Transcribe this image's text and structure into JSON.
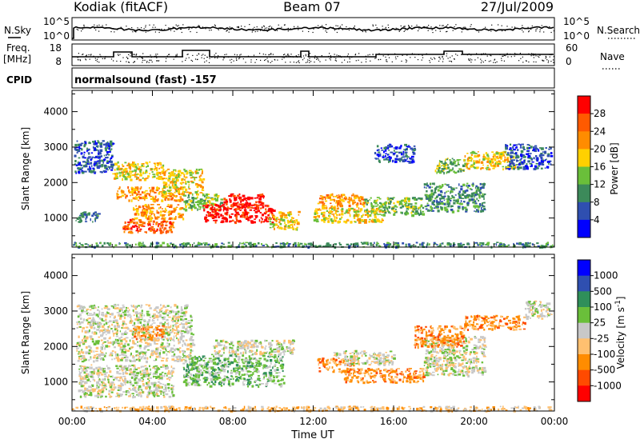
{
  "header": {
    "station": "Kodiak (fitACF)",
    "beam": "Beam 07",
    "date": "27/Jul/2009"
  },
  "strip_labels": {
    "nsky": "N.Sky",
    "nsearch": "N.Search",
    "freq": "Freq.",
    "freq_unit": "[MHz]",
    "nave": "Nave",
    "cpid": "CPID",
    "cpid_text": "normalsound (fast) -157"
  },
  "noise_strip": {
    "left_ticks": [
      "10^5",
      "10^0"
    ],
    "right_ticks": [
      "10^5",
      "10^0"
    ]
  },
  "freq_strip": {
    "left_ticks": [
      "18",
      "8"
    ],
    "right_ticks": [
      "60",
      "0"
    ]
  },
  "x_axis": {
    "label": "Time UT",
    "ticks": [
      "00:00",
      "04:00",
      "08:00",
      "12:00",
      "16:00",
      "20:00",
      "00:00"
    ]
  },
  "colors": {
    "power": [
      "#0000ff",
      "#2f4fb0",
      "#3c8a5a",
      "#6abf3a",
      "#ffd000",
      "#ff8c00",
      "#ff5a00",
      "#ff0000"
    ],
    "velocity": [
      "#ff0000",
      "#ff4a00",
      "#ff8c00",
      "#ffc070",
      "#c8c8c8",
      "#6abf3a",
      "#2f8f5a",
      "#2f4fb0",
      "#0000ff"
    ]
  },
  "chart_data": [
    {
      "type": "heatmap",
      "title": "",
      "xlabel": "",
      "ylabel": "Slant Range [km]",
      "xlim": [
        0,
        24
      ],
      "ylim": [
        180,
        4600
      ],
      "yticks": [
        1000,
        2000,
        3000,
        4000
      ],
      "colorbar_label": "Power [dB]",
      "colorbar_ticks": [
        "4",
        "8",
        "12",
        "16",
        "20",
        "24",
        "28"
      ],
      "blobs": [
        {
          "t0": 0.0,
          "t1": 24.0,
          "r0": 200,
          "r1": 330,
          "level": 2
        },
        {
          "t0": 0.1,
          "t1": 2.0,
          "r0": 2300,
          "r1": 3200,
          "level": 1
        },
        {
          "t0": 0.1,
          "t1": 1.3,
          "r0": 900,
          "r1": 1200,
          "level": 2
        },
        {
          "t0": 2.0,
          "t1": 4.5,
          "r0": 2100,
          "r1": 2600,
          "level": 4
        },
        {
          "t0": 2.2,
          "t1": 5.5,
          "r0": 1500,
          "r1": 1900,
          "level": 5
        },
        {
          "t0": 2.5,
          "t1": 5.0,
          "r0": 600,
          "r1": 1000,
          "level": 6
        },
        {
          "t0": 3.0,
          "t1": 5.5,
          "r0": 1000,
          "r1": 1400,
          "level": 5
        },
        {
          "t0": 4.5,
          "t1": 6.5,
          "r0": 1700,
          "r1": 2400,
          "level": 4
        },
        {
          "t0": 5.5,
          "t1": 7.5,
          "r0": 1250,
          "r1": 1700,
          "level": 3
        },
        {
          "t0": 6.5,
          "t1": 10.0,
          "r0": 900,
          "r1": 1400,
          "level": 7
        },
        {
          "t0": 7.5,
          "t1": 9.5,
          "r0": 1300,
          "r1": 1700,
          "level": 7
        },
        {
          "t0": 9.8,
          "t1": 11.3,
          "r0": 700,
          "r1": 1200,
          "level": 4
        },
        {
          "t0": 12.2,
          "t1": 14.5,
          "r0": 1300,
          "r1": 1700,
          "level": 5
        },
        {
          "t0": 12.0,
          "t1": 15.5,
          "r0": 900,
          "r1": 1300,
          "level": 4
        },
        {
          "t0": 14.5,
          "t1": 17.5,
          "r0": 1100,
          "r1": 1600,
          "level": 3
        },
        {
          "t0": 17.5,
          "t1": 20.5,
          "r0": 1200,
          "r1": 2000,
          "level": 2
        },
        {
          "t0": 15.0,
          "t1": 17.0,
          "r0": 2600,
          "r1": 3100,
          "level": 1
        },
        {
          "t0": 18.0,
          "t1": 19.5,
          "r0": 2300,
          "r1": 2700,
          "level": 3
        },
        {
          "t0": 19.5,
          "t1": 22.0,
          "r0": 2400,
          "r1": 2900,
          "level": 4
        },
        {
          "t0": 21.5,
          "t1": 23.8,
          "r0": 2400,
          "r1": 3100,
          "level": 1
        }
      ]
    },
    {
      "type": "heatmap",
      "title": "",
      "xlabel": "Time UT",
      "ylabel": "Slant Range [km]",
      "xlim": [
        0,
        24
      ],
      "ylim": [
        180,
        4600
      ],
      "yticks": [
        1000,
        2000,
        3000,
        4000
      ],
      "colorbar_label": "Velocity [m s^-1]",
      "colorbar_ticks": [
        "1000",
        "500",
        "100",
        "25",
        "-25",
        "-100",
        "-500",
        "-1000"
      ],
      "blobs": [
        {
          "t0": 0.0,
          "t1": 24.0,
          "r0": 200,
          "r1": 330,
          "level": 3
        },
        {
          "t0": 0.2,
          "t1": 6.0,
          "r0": 1600,
          "r1": 3200,
          "level": 4
        },
        {
          "t0": 0.3,
          "t1": 5.0,
          "r0": 600,
          "r1": 1500,
          "level": 4
        },
        {
          "t0": 3.0,
          "t1": 4.5,
          "r0": 2200,
          "r1": 2600,
          "level": 2
        },
        {
          "t0": 5.5,
          "t1": 10.5,
          "r0": 900,
          "r1": 1800,
          "level": 5
        },
        {
          "t0": 7.0,
          "t1": 11.0,
          "r0": 1800,
          "r1": 2200,
          "level": 4
        },
        {
          "t0": 12.2,
          "t1": 14.0,
          "r0": 1300,
          "r1": 1700,
          "level": 2
        },
        {
          "t0": 13.5,
          "t1": 17.5,
          "r0": 1000,
          "r1": 1400,
          "level": 2
        },
        {
          "t0": 13.0,
          "t1": 16.0,
          "r0": 1500,
          "r1": 1900,
          "level": 4
        },
        {
          "t0": 17.5,
          "t1": 20.5,
          "r0": 1200,
          "r1": 2300,
          "level": 4
        },
        {
          "t0": 17.0,
          "t1": 19.5,
          "r0": 2000,
          "r1": 2600,
          "level": 2
        },
        {
          "t0": 19.5,
          "t1": 22.5,
          "r0": 2500,
          "r1": 2900,
          "level": 2
        },
        {
          "t0": 22.5,
          "t1": 23.8,
          "r0": 2800,
          "r1": 3300,
          "level": 4
        }
      ]
    }
  ]
}
